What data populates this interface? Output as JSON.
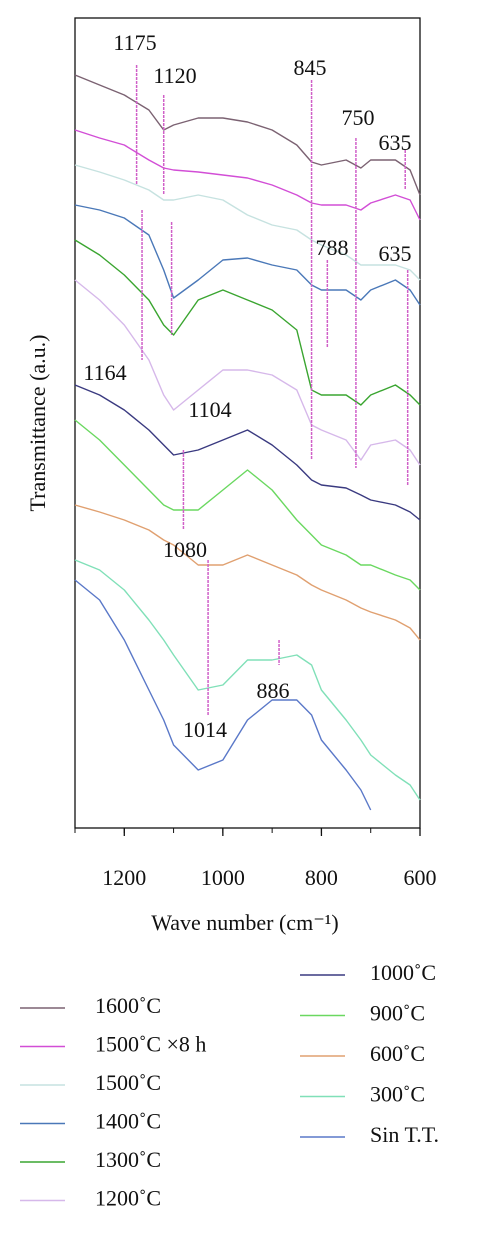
{
  "chart_data": {
    "type": "line",
    "x_label": "Wave number (cm⁻¹)",
    "y_label": "Transmittance (a.u.)",
    "xlim": [
      1300,
      600
    ],
    "ylim": [
      0,
      810
    ],
    "xticks": [
      1200,
      1000,
      800,
      600
    ],
    "grid": false,
    "legend": "bottom",
    "x": [
      1300,
      1250,
      1200,
      1150,
      1120,
      1100,
      1050,
      1000,
      950,
      900,
      850,
      820,
      800,
      750,
      720,
      700,
      650,
      620,
      600
    ],
    "series": [
      {
        "name": "1600˚C",
        "color": "#7b6272",
        "values": [
          753,
          743,
          733,
          718,
          698,
          703,
          710,
          710,
          706,
          698,
          683,
          666,
          663,
          668,
          660,
          668,
          668,
          658,
          633
        ]
      },
      {
        "name": "1500˚C ×8 h",
        "color": "#d24ed6",
        "values": [
          698,
          690,
          683,
          668,
          660,
          658,
          656,
          653,
          650,
          643,
          633,
          625,
          623,
          623,
          618,
          625,
          633,
          628,
          608
        ]
      },
      {
        "name": "1500˚C",
        "color": "#c6e2e0",
        "values": [
          663,
          656,
          648,
          638,
          628,
          628,
          633,
          628,
          613,
          603,
          598,
          588,
          583,
          573,
          563,
          563,
          563,
          558,
          548
        ]
      },
      {
        "name": "1400˚C",
        "color": "#4a78b8",
        "values": [
          623,
          618,
          610,
          593,
          558,
          530,
          548,
          568,
          570,
          563,
          558,
          543,
          538,
          538,
          528,
          538,
          548,
          538,
          523
        ]
      },
      {
        "name": "1300˚C",
        "color": "#3aa530",
        "values": [
          588,
          573,
          553,
          528,
          503,
          493,
          528,
          538,
          528,
          518,
          498,
          438,
          433,
          433,
          423,
          433,
          443,
          433,
          423
        ]
      },
      {
        "name": "1200˚C",
        "color": "#d6b8ea",
        "values": [
          548,
          528,
          503,
          468,
          433,
          418,
          438,
          458,
          458,
          453,
          438,
          403,
          398,
          388,
          368,
          383,
          388,
          378,
          363
        ]
      },
      {
        "name": "1000˚C",
        "color": "#3a3a80",
        "values": [
          443,
          433,
          418,
          398,
          383,
          373,
          378,
          388,
          398,
          383,
          363,
          348,
          343,
          340,
          333,
          328,
          323,
          316,
          308
        ]
      },
      {
        "name": "900˚C",
        "color": "#6ad860",
        "values": [
          408,
          388,
          363,
          338,
          323,
          318,
          318,
          338,
          358,
          338,
          308,
          293,
          283,
          273,
          263,
          263,
          253,
          248,
          238
        ]
      },
      {
        "name": "600˚C",
        "color": "#e0a070",
        "values": [
          323,
          316,
          308,
          298,
          288,
          283,
          263,
          263,
          273,
          263,
          253,
          243,
          238,
          228,
          220,
          216,
          208,
          200,
          188
        ]
      },
      {
        "name": "300˚C",
        "color": "#80e0b8",
        "values": [
          268,
          258,
          238,
          208,
          188,
          173,
          138,
          143,
          168,
          168,
          173,
          163,
          138,
          108,
          88,
          73,
          53,
          43,
          28
        ]
      },
      {
        "name": "Sin T.T.",
        "color": "#5a78c8",
        "values": [
          248,
          228,
          188,
          138,
          108,
          83,
          58,
          68,
          108,
          128,
          128,
          113,
          88,
          58,
          38,
          18,
          null,
          null,
          null
        ]
      }
    ],
    "annotations": [
      {
        "text": "1175",
        "x": 1175
      },
      {
        "text": "1120",
        "x": 1120
      },
      {
        "text": "845",
        "x": 820
      },
      {
        "text": "750",
        "x": 730
      },
      {
        "text": "635",
        "x": 630
      },
      {
        "text": "788",
        "x": 788
      },
      {
        "text": "635",
        "x": 625
      },
      {
        "text": "1164",
        "x": 1164
      },
      {
        "text": "1104",
        "x": 1104
      },
      {
        "text": "1080",
        "x": 1080
      },
      {
        "text": "1014",
        "x": 1030
      },
      {
        "text": "886",
        "x": 886
      }
    ]
  }
}
